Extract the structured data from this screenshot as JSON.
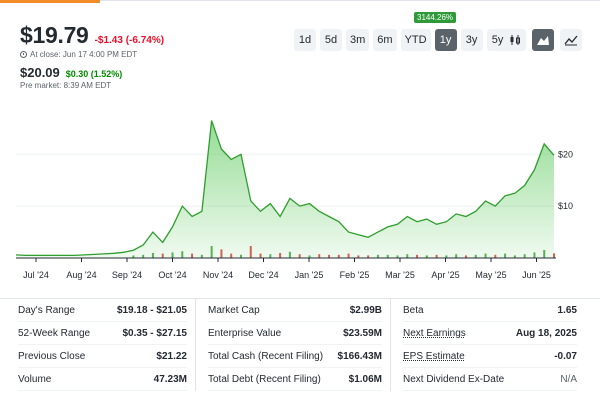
{
  "quote": {
    "price": "$19.79",
    "change": "-$1.43 (-6.74%)",
    "close_note": "At close: Jun 17 4:00 PM EDT",
    "pre_price": "$20.09",
    "pre_change": "$0.30 (1.52%)",
    "pre_note": "Pre market: 8:39 AM EDT"
  },
  "badge": "3144.26%",
  "ranges": [
    "1d",
    "5d",
    "3m",
    "6m",
    "YTD",
    "1y",
    "3y",
    "5y"
  ],
  "active_range": "1y",
  "tools": [
    "candle-chart-icon",
    "mountain-chart-icon",
    "line-chart-icon"
  ],
  "colors": {
    "up": "#008a00",
    "down": "#eb0f29",
    "area": "#3fbf3f"
  },
  "chart_data": {
    "type": "area",
    "x_tick_labels": [
      "Jul '24",
      "Aug '24",
      "Sep '24",
      "Oct '24",
      "Nov '24",
      "Dec '24",
      "Jan '25",
      "Feb '25",
      "Mar '25",
      "Apr '25",
      "May '25",
      "Jun '25"
    ],
    "y_tick_labels": [
      "$20",
      "$10"
    ],
    "ylim": [
      0,
      27
    ],
    "series": [
      {
        "values": [
          0.6,
          0.5,
          0.5,
          0.5,
          0.5,
          0.5,
          0.5,
          0.6,
          0.7,
          0.8,
          0.9,
          1.1,
          1.5,
          2.5,
          5,
          3,
          6,
          10,
          8,
          9,
          26.5,
          21,
          19,
          20,
          11,
          9,
          10.5,
          8,
          11.5,
          10,
          10.5,
          9,
          8,
          7,
          5,
          4.5,
          4,
          5,
          6,
          6.5,
          8,
          7,
          7.5,
          6.5,
          7,
          8.5,
          8,
          9,
          11,
          10,
          12,
          12.5,
          14,
          17,
          22,
          19.8
        ]
      }
    ]
  },
  "stats": {
    "col1": [
      {
        "label": "Day's Range",
        "value": "$19.18 - $21.05"
      },
      {
        "label": "52-Week Range",
        "value": "$0.35 - $27.15"
      },
      {
        "label": "Previous Close",
        "value": "$21.22"
      },
      {
        "label": "Volume",
        "value": "47.23M"
      }
    ],
    "col2": [
      {
        "label": "Market Cap",
        "value": "$2.99B"
      },
      {
        "label": "Enterprise Value",
        "value": "$23.59M"
      },
      {
        "label": "Total Cash (Recent Filing)",
        "value": "$166.43M"
      },
      {
        "label": "Total Debt (Recent Filing)",
        "value": "$1.06M"
      }
    ],
    "col3": [
      {
        "label": "Beta",
        "value": "1.65"
      },
      {
        "label": "Next Earnings",
        "value": "Aug 18, 2025"
      },
      {
        "label": "EPS Estimate",
        "value": "-0.07"
      },
      {
        "label": "Next Dividend Ex-Date",
        "value": "N/A"
      }
    ]
  }
}
